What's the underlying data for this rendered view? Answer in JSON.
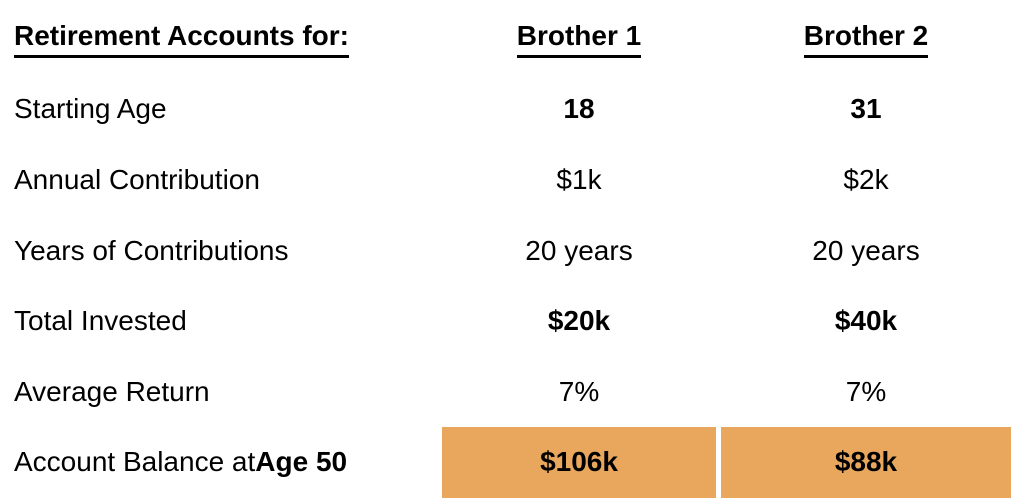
{
  "table": {
    "header": {
      "label": "Retirement Accounts for:",
      "col1": "Brother 1",
      "col2": "Brother 2"
    },
    "rows": [
      {
        "label": "Starting Age",
        "v1": "18",
        "v2": "31"
      },
      {
        "label": "Annual Contribution",
        "v1": "$1k",
        "v2": "$2k"
      },
      {
        "label": "Years of Contributions",
        "v1": "20 years",
        "v2": "20 years"
      },
      {
        "label": "Total Invested",
        "v1": "$20k",
        "v2": "$40k"
      },
      {
        "label": "Average Return",
        "v1": "7%",
        "v2": "7%"
      },
      {
        "label_prefix": "Account Balance at ",
        "label_bold": "Age 50",
        "v1": "$106k",
        "v2": "$88k"
      }
    ],
    "colors": {
      "highlight": "#E8A75D",
      "text": "#000000",
      "background": "#FFFFFF"
    }
  },
  "chart_data": {
    "type": "table",
    "title": "Retirement Accounts for:",
    "columns": [
      "Brother 1",
      "Brother 2"
    ],
    "row_labels": [
      "Starting Age",
      "Annual Contribution",
      "Years of Contributions",
      "Total Invested",
      "Average Return",
      "Account Balance at Age 50"
    ],
    "cells": [
      [
        "18",
        "31"
      ],
      [
        "$1k",
        "$2k"
      ],
      [
        "20 years",
        "20 years"
      ],
      [
        "$20k",
        "$40k"
      ],
      [
        "7%",
        "7%"
      ],
      [
        "$106k",
        "$88k"
      ]
    ],
    "highlighted_row": "Account Balance at Age 50",
    "highlight_color": "#E8A75D",
    "notes": "Comparison table of two retirement accounts; final balance row highlighted in orange"
  }
}
